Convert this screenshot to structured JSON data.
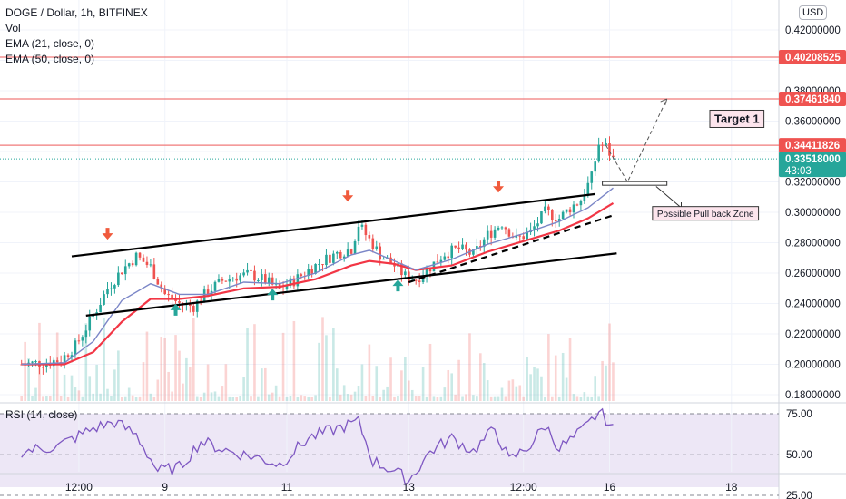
{
  "legend": {
    "title": "DOGE / Dollar, 1h, BITFINEX",
    "vol": "Vol",
    "ema21": "EMA (21, close, 0)",
    "ema50": "EMA (50, close, 0)",
    "rsi": "RSI (14, close)"
  },
  "currency_button": "USD",
  "chart_data": {
    "type": "candlestick",
    "symbol": "DOGE / Dollar",
    "interval": "1h",
    "exchange": "BITFINEX",
    "ylim": [
      0.175,
      0.43
    ],
    "y_ticks": [
      "0.42000000",
      "0.38000000",
      "0.36000000",
      "0.32000000",
      "0.30000000",
      "0.28000000",
      "0.26000000",
      "0.24000000",
      "0.22000000",
      "0.20000000",
      "0.18000000"
    ],
    "x_ticks": [
      "12:00",
      "9",
      "11",
      "13",
      "12:00",
      "16",
      "18"
    ],
    "price_labels": [
      {
        "value": "0.40208525",
        "color": "#ef5350"
      },
      {
        "value": "0.37461840",
        "color": "#ef5350"
      },
      {
        "value": "0.34411826",
        "color": "#ef5350"
      },
      {
        "value": "0.33518000",
        "color": "#26a69a",
        "sub": "43:03"
      }
    ],
    "horizontal_levels": [
      0.40208525,
      0.3746184,
      0.34411826
    ],
    "current_price": 0.33518,
    "close_path": [
      {
        "t": 0,
        "p": 0.2
      },
      {
        "t": 6,
        "p": 0.201
      },
      {
        "t": 11,
        "p": 0.203
      },
      {
        "t": 15,
        "p": 0.212
      },
      {
        "t": 20,
        "p": 0.232
      },
      {
        "t": 24,
        "p": 0.25
      },
      {
        "t": 28,
        "p": 0.262
      },
      {
        "t": 32,
        "p": 0.271
      },
      {
        "t": 36,
        "p": 0.264
      },
      {
        "t": 40,
        "p": 0.246
      },
      {
        "t": 44,
        "p": 0.24
      },
      {
        "t": 48,
        "p": 0.238
      },
      {
        "t": 52,
        "p": 0.248
      },
      {
        "t": 56,
        "p": 0.255
      },
      {
        "t": 60,
        "p": 0.258
      },
      {
        "t": 64,
        "p": 0.259
      },
      {
        "t": 68,
        "p": 0.255
      },
      {
        "t": 72,
        "p": 0.249
      },
      {
        "t": 76,
        "p": 0.255
      },
      {
        "t": 80,
        "p": 0.262
      },
      {
        "t": 84,
        "p": 0.268
      },
      {
        "t": 88,
        "p": 0.273
      },
      {
        "t": 92,
        "p": 0.276
      },
      {
        "t": 94,
        "p": 0.292
      },
      {
        "t": 97,
        "p": 0.282
      },
      {
        "t": 100,
        "p": 0.272
      },
      {
        "t": 104,
        "p": 0.265
      },
      {
        "t": 107,
        "p": 0.258
      },
      {
        "t": 110,
        "p": 0.256
      },
      {
        "t": 114,
        "p": 0.264
      },
      {
        "t": 118,
        "p": 0.273
      },
      {
        "t": 122,
        "p": 0.276
      },
      {
        "t": 126,
        "p": 0.272
      },
      {
        "t": 130,
        "p": 0.285
      },
      {
        "t": 134,
        "p": 0.293
      },
      {
        "t": 138,
        "p": 0.282
      },
      {
        "t": 142,
        "p": 0.287
      },
      {
        "t": 146,
        "p": 0.3
      },
      {
        "t": 150,
        "p": 0.296
      },
      {
        "t": 153,
        "p": 0.303
      },
      {
        "t": 156,
        "p": 0.308
      },
      {
        "t": 159,
        "p": 0.323
      },
      {
        "t": 161,
        "p": 0.345
      },
      {
        "t": 163,
        "p": 0.343
      },
      {
        "t": 165,
        "p": 0.335
      }
    ],
    "ema21_path": [
      {
        "t": 0,
        "p": 0.2
      },
      {
        "t": 12,
        "p": 0.201
      },
      {
        "t": 20,
        "p": 0.215
      },
      {
        "t": 28,
        "p": 0.242
      },
      {
        "t": 36,
        "p": 0.253
      },
      {
        "t": 44,
        "p": 0.246
      },
      {
        "t": 52,
        "p": 0.246
      },
      {
        "t": 62,
        "p": 0.254
      },
      {
        "t": 72,
        "p": 0.253
      },
      {
        "t": 82,
        "p": 0.26
      },
      {
        "t": 92,
        "p": 0.272
      },
      {
        "t": 97,
        "p": 0.275
      },
      {
        "t": 104,
        "p": 0.268
      },
      {
        "t": 110,
        "p": 0.262
      },
      {
        "t": 120,
        "p": 0.269
      },
      {
        "t": 130,
        "p": 0.279
      },
      {
        "t": 140,
        "p": 0.286
      },
      {
        "t": 150,
        "p": 0.294
      },
      {
        "t": 158,
        "p": 0.303
      },
      {
        "t": 165,
        "p": 0.316
      }
    ],
    "ema50_path": [
      {
        "t": 0,
        "p": 0.2
      },
      {
        "t": 12,
        "p": 0.2
      },
      {
        "t": 20,
        "p": 0.208
      },
      {
        "t": 28,
        "p": 0.228
      },
      {
        "t": 36,
        "p": 0.243
      },
      {
        "t": 44,
        "p": 0.243
      },
      {
        "t": 52,
        "p": 0.245
      },
      {
        "t": 62,
        "p": 0.25
      },
      {
        "t": 72,
        "p": 0.251
      },
      {
        "t": 82,
        "p": 0.256
      },
      {
        "t": 92,
        "p": 0.265
      },
      {
        "t": 97,
        "p": 0.268
      },
      {
        "t": 104,
        "p": 0.266
      },
      {
        "t": 110,
        "p": 0.262
      },
      {
        "t": 120,
        "p": 0.265
      },
      {
        "t": 130,
        "p": 0.274
      },
      {
        "t": 140,
        "p": 0.281
      },
      {
        "t": 150,
        "p": 0.288
      },
      {
        "t": 158,
        "p": 0.296
      },
      {
        "t": 165,
        "p": 0.306
      }
    ],
    "rsi": {
      "ylim": [
        20,
        80
      ],
      "levels": [
        70,
        30
      ],
      "ticks": [
        "75.00",
        "50.00",
        "25.00"
      ],
      "path": [
        {
          "t": 0,
          "p": 52
        },
        {
          "t": 10,
          "p": 55
        },
        {
          "t": 20,
          "p": 66
        },
        {
          "t": 26,
          "p": 70
        },
        {
          "t": 32,
          "p": 62
        },
        {
          "t": 38,
          "p": 40
        },
        {
          "t": 44,
          "p": 42
        },
        {
          "t": 50,
          "p": 58
        },
        {
          "t": 58,
          "p": 52
        },
        {
          "t": 66,
          "p": 48
        },
        {
          "t": 72,
          "p": 44
        },
        {
          "t": 80,
          "p": 60
        },
        {
          "t": 88,
          "p": 66
        },
        {
          "t": 94,
          "p": 70
        },
        {
          "t": 98,
          "p": 46
        },
        {
          "t": 104,
          "p": 40
        },
        {
          "t": 108,
          "p": 34
        },
        {
          "t": 114,
          "p": 52
        },
        {
          "t": 120,
          "p": 60
        },
        {
          "t": 126,
          "p": 52
        },
        {
          "t": 132,
          "p": 66
        },
        {
          "t": 136,
          "p": 46
        },
        {
          "t": 142,
          "p": 56
        },
        {
          "t": 146,
          "p": 68
        },
        {
          "t": 150,
          "p": 54
        },
        {
          "t": 154,
          "p": 60
        },
        {
          "t": 158,
          "p": 68
        },
        {
          "t": 161,
          "p": 76
        },
        {
          "t": 163,
          "p": 72
        },
        {
          "t": 165,
          "p": 65
        }
      ]
    },
    "drawings": {
      "channel_upper": [
        {
          "t": 14,
          "p": 0.271
        },
        {
          "t": 160,
          "p": 0.312
        }
      ],
      "channel_lower": [
        {
          "t": 18,
          "p": 0.232
        },
        {
          "t": 166,
          "p": 0.273
        }
      ],
      "channel_mid_upper": [
        {
          "t": 102,
          "p": 0.256
        },
        {
          "t": 164,
          "p": 0.3
        }
      ],
      "dashed_trend": [
        {
          "t": 108,
          "p": 0.254
        },
        {
          "t": 165,
          "p": 0.298
        }
      ],
      "red_arrows": [
        {
          "t": 24,
          "p": 0.282
        },
        {
          "t": 91,
          "p": 0.307
        },
        {
          "t": 133,
          "p": 0.313
        }
      ],
      "green_arrows": [
        {
          "t": 43,
          "p": 0.232
        },
        {
          "t": 70,
          "p": 0.242
        },
        {
          "t": 105,
          "p": 0.248
        }
      ],
      "projection": [
        {
          "t": 163,
          "p": 0.344
        },
        {
          "t": 169,
          "p": 0.32
        },
        {
          "t": 180,
          "p": 0.3746
        }
      ],
      "pullback_zone": [
        {
          "t": 162,
          "p": 0.319
        },
        {
          "t": 180,
          "p": 0.317
        }
      ],
      "pullback_arrow": [
        {
          "t": 177,
          "p": 0.317
        },
        {
          "t": 184,
          "p": 0.303
        }
      ],
      "annotations": [
        {
          "text": "Target 1",
          "t": 193,
          "p": 0.3615,
          "style": "target"
        },
        {
          "text": "Possible Pull back Zone",
          "t": 177,
          "p": 0.2993,
          "style": "zone"
        }
      ]
    },
    "colors": {
      "up": "#26a69a",
      "down": "#ef5350",
      "ema21": "#7b86c7",
      "ema50": "#f23645",
      "rsi": "#7e57c2",
      "rsi_band": "#ede7f6",
      "level_line": "#f07a7a"
    },
    "grid": true
  }
}
